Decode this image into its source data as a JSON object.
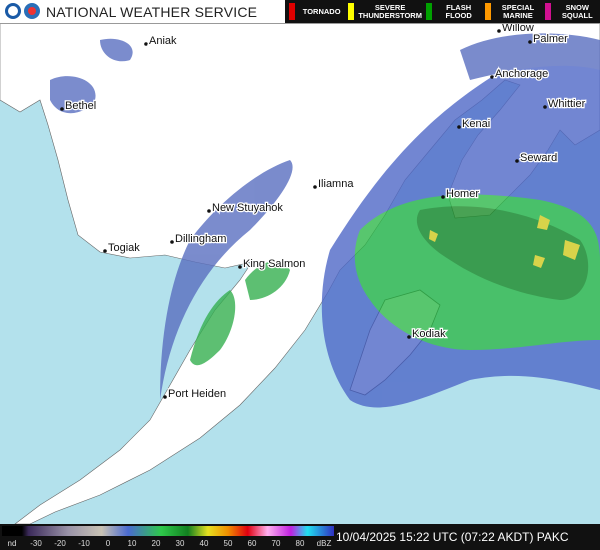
{
  "header": {
    "title": "NATIONAL WEATHER SERVICE",
    "warnings": [
      "TORNADO",
      "SEVERE THUNDERSTORM",
      "FLASH FLOOD",
      "SPECIAL MARINE",
      "SNOW SQUALL"
    ]
  },
  "map": {
    "cities": [
      "Aniak",
      "Bethel",
      "Willow",
      "Palmer",
      "Anchorage",
      "Whittier",
      "Kenai",
      "Seward",
      "Iliamna",
      "New Stuyahok",
      "Homer",
      "Dillingham",
      "Togiak",
      "King Salmon",
      "Kodiak",
      "Port Heiden"
    ]
  },
  "footer": {
    "scale_labels": [
      "nd",
      "-30",
      "-20",
      "-10",
      "0",
      "10",
      "20",
      "30",
      "40",
      "50",
      "60",
      "70",
      "80",
      "dBZ"
    ],
    "timestamp": "10/04/2025 15:22 UTC (07:22 AKDT) PAKC"
  }
}
